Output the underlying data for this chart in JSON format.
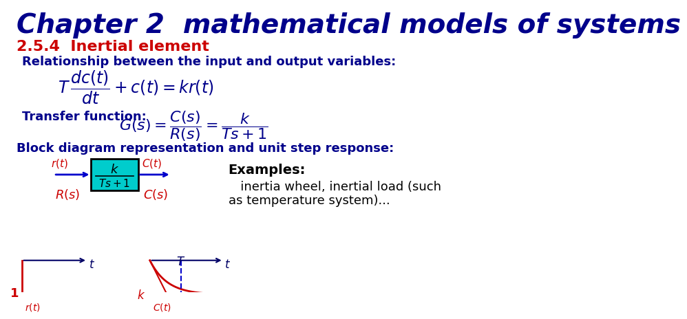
{
  "title": "Chapter 2  mathematical models of systems",
  "title_color": "#00008B",
  "title_fontsize": 28,
  "bg_color": "#FFFFFF",
  "section_label": "2.5.4  Inertial element",
  "section_color": "#CC0000",
  "section_fontsize": 16,
  "relationship_text": "Relationship between the input and output variables:",
  "transfer_text": "Transfer function:",
  "block_text": "Block diagram representation and unit step response:",
  "examples_text": "Examples:",
  "examples_detail": "   inertia wheel, inertial load (such\nas temperature system)...",
  "text_color_blue": "#00008B",
  "arrow_color": "#0000CC",
  "block_fill": "#00CCCC",
  "block_border": "#000000",
  "step_color": "#CC0000",
  "response_color": "#CC0000",
  "dashed_color": "#CC0000"
}
